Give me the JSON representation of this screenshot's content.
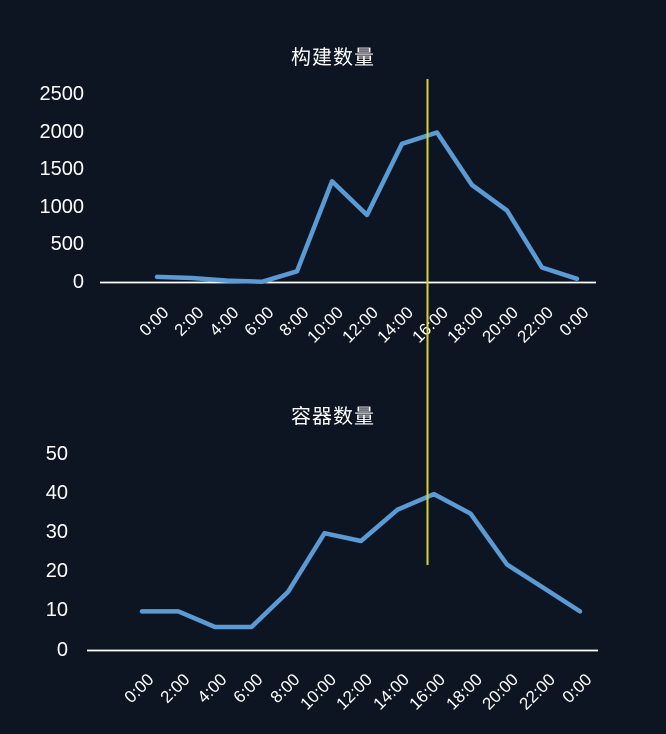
{
  "page": {
    "background_color": "#0d1522",
    "text_color": "#ffffff"
  },
  "marker": {
    "type": "vertical-line",
    "color": "#d6d62a",
    "near_category": "16:00",
    "spans": "both charts"
  },
  "chart_data": [
    {
      "type": "line",
      "title": "构建数量",
      "categories": [
        "0:00",
        "2:00",
        "4:00",
        "6:00",
        "8:00",
        "10:00",
        "12:00",
        "14:00",
        "16:00",
        "18:00",
        "20:00",
        "22:00",
        "0:00"
      ],
      "values": [
        75,
        60,
        25,
        10,
        150,
        1350,
        900,
        1850,
        2000,
        1300,
        960,
        200,
        50
      ],
      "xlabel": "",
      "ylabel": "",
      "ylim": [
        0,
        2500
      ],
      "yticks": [
        0,
        500,
        1000,
        1500,
        2000,
        2500
      ],
      "line_color": "#5b9bd5",
      "axis_color": "#ffffff",
      "grid": false,
      "legend": false
    },
    {
      "type": "line",
      "title": "容器数量",
      "categories": [
        "0:00",
        "2:00",
        "4:00",
        "6:00",
        "8:00",
        "10:00",
        "12:00",
        "14:00",
        "16:00",
        "18:00",
        "20:00",
        "22:00",
        "0:00"
      ],
      "values": [
        10,
        10,
        6,
        6,
        15,
        30,
        28,
        36,
        40,
        35,
        22,
        16,
        10
      ],
      "xlabel": "",
      "ylabel": "",
      "ylim": [
        0,
        50
      ],
      "yticks": [
        0,
        10,
        20,
        30,
        40,
        50
      ],
      "line_color": "#5b9bd5",
      "axis_color": "#ffffff",
      "grid": false,
      "legend": false
    }
  ]
}
